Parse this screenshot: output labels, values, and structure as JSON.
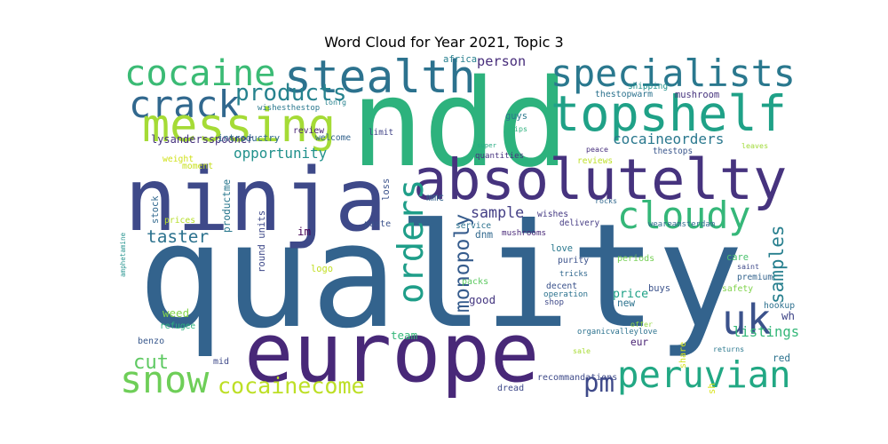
{
  "title": "Word Cloud for Year 2021, Topic 3",
  "words": [
    {
      "text": "quality",
      "color": "#33638d"
    },
    {
      "text": "ndd",
      "color": "#2db27d"
    },
    {
      "text": "europe",
      "color": "#482878"
    },
    {
      "text": "ninja",
      "color": "#3e4989"
    },
    {
      "text": "absolutelty",
      "color": "#46337e"
    },
    {
      "text": "topshelf",
      "color": "#1fa187"
    },
    {
      "text": "specialists",
      "color": "#2a788e"
    },
    {
      "text": "stealth",
      "color": "#2c728e"
    },
    {
      "text": "cocaine",
      "color": "#3bbb75"
    },
    {
      "text": "crack",
      "color": "#31688e"
    },
    {
      "text": "messing",
      "color": "#a5db36"
    },
    {
      "text": "products",
      "color": "#26828e"
    },
    {
      "text": "cloudy",
      "color": "#35b779"
    },
    {
      "text": "snow",
      "color": "#6ece58"
    },
    {
      "text": "peruvian",
      "color": "#22a884"
    },
    {
      "text": "uk",
      "color": "#3b528b"
    },
    {
      "text": "orders",
      "color": "#1f9e89"
    },
    {
      "text": "cocainecome",
      "color": "#bddf26"
    },
    {
      "text": "monopoly",
      "color": "#365c8d"
    },
    {
      "text": "samples",
      "color": "#277f8e"
    },
    {
      "text": "pm",
      "color": "#3e4989"
    },
    {
      "text": "taster",
      "color": "#2c728e"
    },
    {
      "text": "cut",
      "color": "#5ec962"
    },
    {
      "text": "opportunity",
      "color": "#21918c"
    },
    {
      "text": "cocaineorders",
      "color": "#2a788e"
    },
    {
      "text": "sample",
      "color": "#433e85"
    },
    {
      "text": "person",
      "color": "#472d7b"
    },
    {
      "text": "listings",
      "color": "#35b779"
    },
    {
      "text": "price",
      "color": "#1fa187"
    },
    {
      "text": "buys",
      "color": "#3b528b"
    },
    {
      "text": "wishes",
      "color": "#443983"
    },
    {
      "text": "prices",
      "color": "#b5de2b"
    },
    {
      "text": "productme",
      "color": "#2a788e"
    },
    {
      "text": "round units",
      "color": "#3e4989"
    },
    {
      "text": "lysandersspooner",
      "color": "#46327e"
    },
    {
      "text": "introductry",
      "color": "#31688e"
    },
    {
      "text": "wishesthestop",
      "color": "#2a788e"
    },
    {
      "text": "review",
      "color": "#482475"
    },
    {
      "text": "welcome",
      "color": "#33638d"
    },
    {
      "text": "limit",
      "color": "#414487"
    },
    {
      "text": "lonfg",
      "color": "#26828e"
    },
    {
      "text": "weight",
      "color": "#d0e11c"
    },
    {
      "text": "moment",
      "color": "#c8e020"
    },
    {
      "text": "stock",
      "color": "#31688e"
    },
    {
      "text": "amphetamine",
      "color": "#21918c"
    },
    {
      "text": "weed",
      "color": "#84d44b"
    },
    {
      "text": "refugee",
      "color": "#2db27d"
    },
    {
      "text": "benzo",
      "color": "#38588c"
    },
    {
      "text": "logo",
      "color": "#c2df23"
    },
    {
      "text": "im",
      "color": "#440154"
    },
    {
      "text": "paste",
      "color": "#3b528b"
    },
    {
      "text": "mid",
      "color": "#3e4989"
    },
    {
      "text": "quantities",
      "color": "#46337e"
    },
    {
      "text": "loss",
      "color": "#3b528b"
    },
    {
      "text": "mmc",
      "color": "#33638d"
    },
    {
      "text": "service",
      "color": "#2c728e"
    },
    {
      "text": "dnm",
      "color": "#31688e"
    },
    {
      "text": "mushrooms",
      "color": "#482878"
    },
    {
      "text": "packs",
      "color": "#5ec962"
    },
    {
      "text": "good",
      "color": "#453781"
    },
    {
      "text": "team",
      "color": "#35b779"
    },
    {
      "text": "dread",
      "color": "#3e4989"
    },
    {
      "text": "recommandations",
      "color": "#3e4a89"
    },
    {
      "text": "super",
      "color": "#25ab82"
    },
    {
      "text": "ships",
      "color": "#2db27d"
    },
    {
      "text": "guys",
      "color": "#2a788e"
    },
    {
      "text": "africa",
      "color": "#277f8e"
    },
    {
      "text": "shipping",
      "color": "#21918c"
    },
    {
      "text": "thestopwarm",
      "color": "#2c728e"
    },
    {
      "text": "mushroom",
      "color": "#46337e"
    },
    {
      "text": "peace",
      "color": "#472f7d"
    },
    {
      "text": "reviews",
      "color": "#bddf26"
    },
    {
      "text": "thestops",
      "color": "#39568c"
    },
    {
      "text": "leaves",
      "color": "#a0da39"
    },
    {
      "text": "delivery",
      "color": "#443a83"
    },
    {
      "text": "rocks",
      "color": "#31688e"
    },
    {
      "text": "weareamsterdam",
      "color": "#2f6c8e"
    },
    {
      "text": "love",
      "color": "#2a788e"
    },
    {
      "text": "purity",
      "color": "#3b528b"
    },
    {
      "text": "periods",
      "color": "#75d054"
    },
    {
      "text": "tricks",
      "color": "#31688e"
    },
    {
      "text": "decent",
      "color": "#3b528b"
    },
    {
      "text": "operation",
      "color": "#2c728e"
    },
    {
      "text": "shop",
      "color": "#3e4989"
    },
    {
      "text": "new",
      "color": "#2c728e"
    },
    {
      "text": "offer",
      "color": "#93d741"
    },
    {
      "text": "eur",
      "color": "#482173"
    },
    {
      "text": "organicvalleylove",
      "color": "#2c728e"
    },
    {
      "text": "sale",
      "color": "#a8db34"
    },
    {
      "text": "share",
      "color": "#d2e21b"
    },
    {
      "text": "care",
      "color": "#4ac16d"
    },
    {
      "text": "saint",
      "color": "#3e4989"
    },
    {
      "text": "premium",
      "color": "#33638d"
    },
    {
      "text": "safety",
      "color": "#81d34d"
    },
    {
      "text": "hookup",
      "color": "#2d708e"
    },
    {
      "text": "wh",
      "color": "#404688"
    },
    {
      "text": "returns",
      "color": "#2a788e"
    },
    {
      "text": "red",
      "color": "#2c728e"
    },
    {
      "text": "sh",
      "color": "#d8e219"
    }
  ]
}
